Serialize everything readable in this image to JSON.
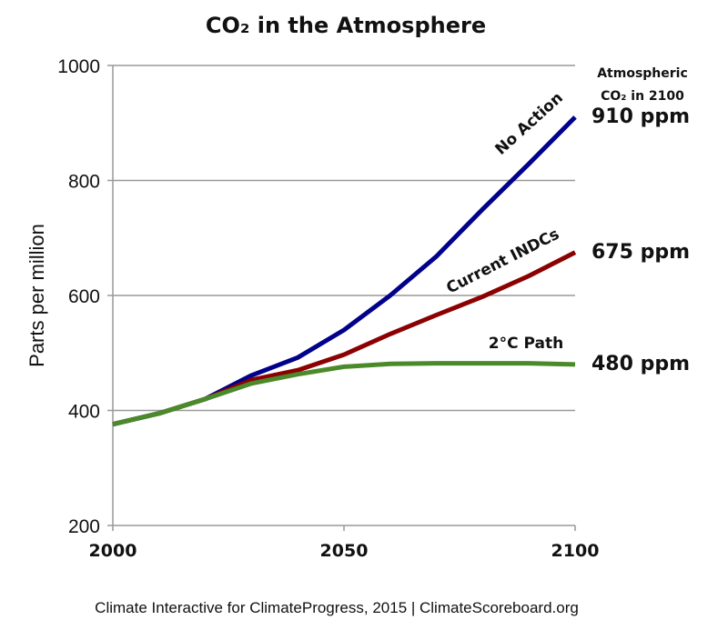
{
  "chart_data": {
    "type": "line",
    "title": "CO₂ in the Atmosphere",
    "ylabel": "Parts per million",
    "xlabel": "",
    "xlim": [
      2000,
      2100
    ],
    "ylim": [
      200,
      1000
    ],
    "xticks": [
      "2000",
      "2050",
      "2100"
    ],
    "yticks": [
      "200",
      "400",
      "600",
      "800",
      "1000"
    ],
    "grid": "horizontal",
    "right_header": [
      "Atmospheric",
      "CO₂ in 2100"
    ],
    "x": [
      2000,
      2010,
      2020,
      2030,
      2040,
      2050,
      2060,
      2070,
      2080,
      2090,
      2100
    ],
    "series": [
      {
        "name": "No Action",
        "color": "#00008B",
        "end_label": "910 ppm",
        "values": [
          376,
          395,
          420,
          461,
          492,
          540,
          600,
          668,
          750,
          829,
          910
        ]
      },
      {
        "name": "Current INDCs",
        "color": "#8B0000",
        "end_label": "675 ppm",
        "values": [
          376,
          395,
          420,
          453,
          470,
          497,
          533,
          566,
          598,
          634,
          675
        ]
      },
      {
        "name": "2°C Path",
        "color": "#4A8A2A",
        "end_label": "480 ppm",
        "values": [
          376,
          395,
          420,
          447,
          463,
          476,
          481,
          482,
          482,
          482,
          480
        ]
      }
    ],
    "source": "Climate Interactive for ClimateProgress, 2015 | ClimateScoreboard.org"
  }
}
